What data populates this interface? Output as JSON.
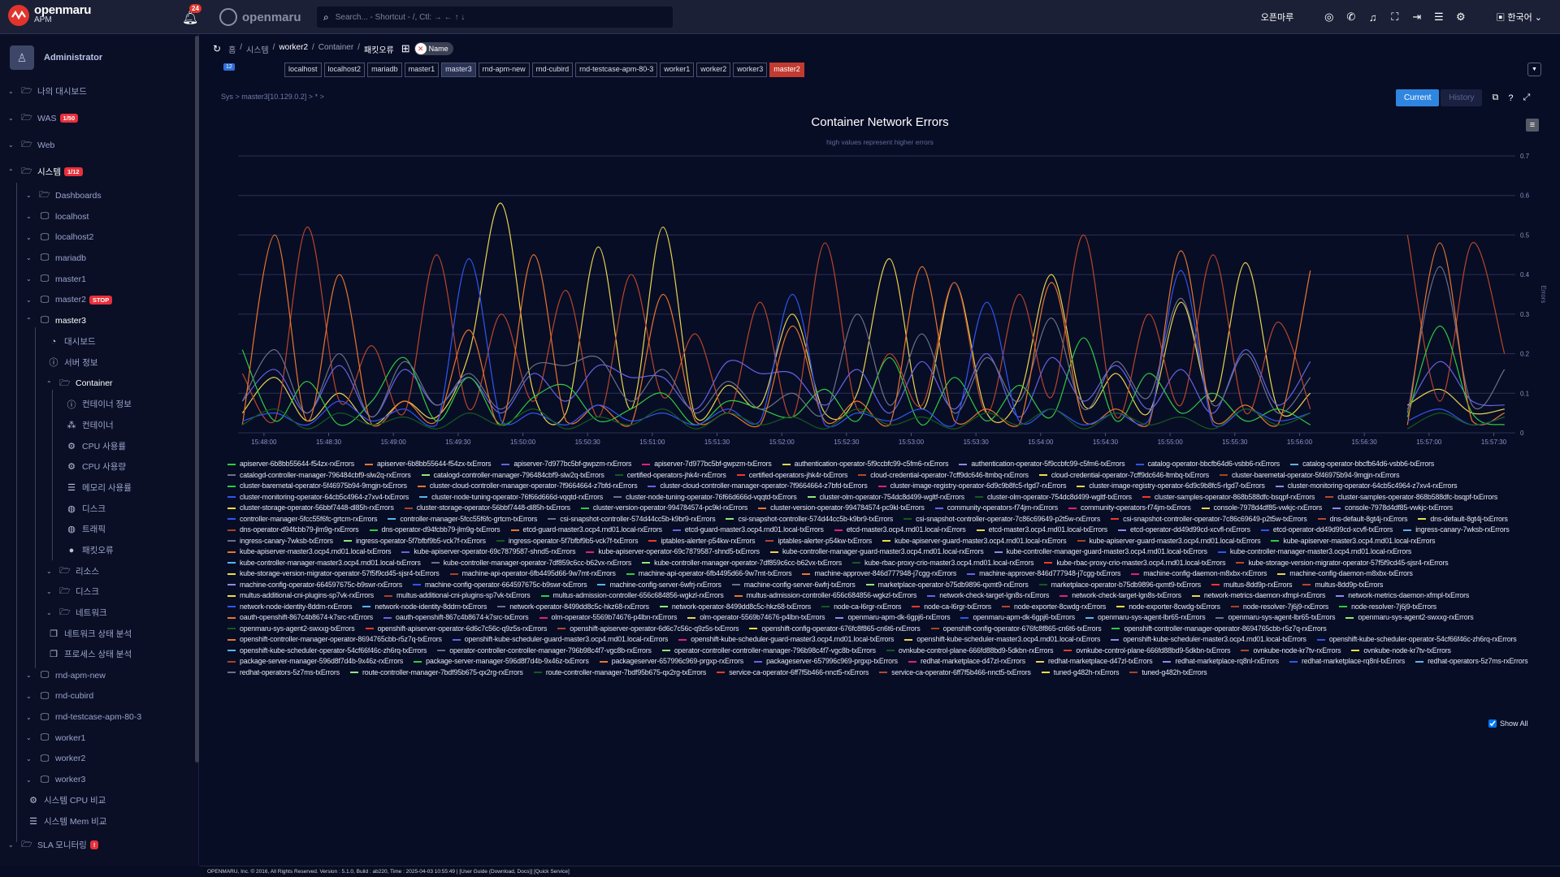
{
  "topbar": {
    "brand": "openmaru",
    "brand_sub": "APM",
    "notif_count": "24",
    "brand2": "openmaru",
    "search_placeholder": "Search... - Shortcut - /, Ctl: → ← ↑ ↓",
    "company": "오픈마루",
    "language": "한국어"
  },
  "sidebar": {
    "user": "Administrator",
    "items": [
      {
        "level": 0,
        "chev": "v",
        "icon": "folder",
        "label": "나의 대시보드"
      },
      {
        "level": 0,
        "chev": "v",
        "icon": "folder",
        "label": "WAS",
        "badge": "1/50"
      },
      {
        "level": 0,
        "chev": "v",
        "icon": "folder",
        "label": "Web"
      },
      {
        "level": 0,
        "chev": "^",
        "icon": "folder",
        "label": "시스템",
        "badge": "1/12",
        "active": true
      },
      {
        "level": 1,
        "chev": "v",
        "icon": "folder",
        "label": "Dashboards"
      },
      {
        "level": 1,
        "chev": "v",
        "icon": "monitor",
        "label": "localhost"
      },
      {
        "level": 1,
        "chev": "v",
        "icon": "monitor",
        "label": "localhost2"
      },
      {
        "level": 1,
        "chev": "v",
        "icon": "monitor",
        "label": "mariadb"
      },
      {
        "level": 1,
        "chev": "v",
        "icon": "monitor",
        "label": "master1"
      },
      {
        "level": 1,
        "chev": "v",
        "icon": "monitor",
        "label": "master2",
        "badge": "STOP"
      },
      {
        "level": 1,
        "chev": "^",
        "icon": "monitor",
        "label": "master3",
        "active": true
      },
      {
        "level": 2,
        "icon": "gauge",
        "label": "대시보드"
      },
      {
        "level": 2,
        "icon": "info",
        "label": "서버 정보"
      },
      {
        "level": 2,
        "chev": "^",
        "icon": "folder",
        "label": "Container",
        "active": true
      },
      {
        "level": 3,
        "icon": "info",
        "label": "컨테이너 정보"
      },
      {
        "level": 3,
        "icon": "cubes",
        "label": "컨테이너"
      },
      {
        "level": 3,
        "icon": "cogs",
        "label": "CPU 사용률"
      },
      {
        "level": 3,
        "icon": "cogs",
        "label": "CPU 사용량"
      },
      {
        "level": 3,
        "icon": "server",
        "label": "메모리 사용률"
      },
      {
        "level": 3,
        "icon": "globe",
        "label": "디스크"
      },
      {
        "level": 3,
        "icon": "globe",
        "label": "트래픽"
      },
      {
        "level": 3,
        "icon": "fire",
        "label": "패킷오류"
      },
      {
        "level": 2,
        "chev": "v",
        "icon": "folder",
        "label": "리소스"
      },
      {
        "level": 2,
        "chev": "v",
        "icon": "folder",
        "label": "디스크"
      },
      {
        "level": 2,
        "chev": "v",
        "icon": "folder",
        "label": "네트워크"
      },
      {
        "level": 2,
        "icon": "copy",
        "label": "네트워크 상태 분석"
      },
      {
        "level": 2,
        "icon": "copy",
        "label": "프로세스 상태 분석"
      },
      {
        "level": 1,
        "chev": "v",
        "icon": "monitor",
        "label": "rnd-apm-new"
      },
      {
        "level": 1,
        "chev": "v",
        "icon": "monitor",
        "label": "rnd-cubird"
      },
      {
        "level": 1,
        "chev": "v",
        "icon": "monitor",
        "label": "rnd-testcase-apm-80-3"
      },
      {
        "level": 1,
        "chev": "v",
        "icon": "monitor",
        "label": "worker1"
      },
      {
        "level": 1,
        "chev": "v",
        "icon": "monitor",
        "label": "worker2"
      },
      {
        "level": 1,
        "chev": "v",
        "icon": "monitor",
        "label": "worker3"
      },
      {
        "level": 1,
        "icon": "cogs",
        "label": "시스템 CPU 비교"
      },
      {
        "level": 1,
        "icon": "server",
        "label": "시스템 Mem 비교"
      },
      {
        "level": 0,
        "chev": "v",
        "icon": "folder",
        "label": "SLA 모니터링",
        "badge": "!"
      }
    ]
  },
  "breadcrumb": {
    "items": [
      "홈",
      "시스템",
      "worker2",
      "Container",
      "패킷오류"
    ],
    "toggle_label": "Name"
  },
  "host_count": "12",
  "hosts": [
    {
      "label": "localhost"
    },
    {
      "label": "localhost2"
    },
    {
      "label": "mariadb"
    },
    {
      "label": "master1"
    },
    {
      "label": "master3",
      "state": "selected"
    },
    {
      "label": "rnd-apm-new"
    },
    {
      "label": "rnd-cubird"
    },
    {
      "label": "rnd-testcase-apm-80-3"
    },
    {
      "label": "worker1"
    },
    {
      "label": "worker2"
    },
    {
      "label": "worker3"
    },
    {
      "label": "master2",
      "state": "stopped"
    }
  ],
  "path": "Sys > master3[10.129.0.2] > * >",
  "buttons": {
    "current": "Current",
    "history": "History"
  },
  "show_all": "Show All",
  "footer": "OPENMARU, Inc. © 2016, All Rights Reserved. Version : 5.1.0, Build : ab220, Time : 2025-04-03 10:55:49  |  [User Guide (Download, Docs)] [Quick Service]",
  "chart_data": {
    "type": "line",
    "title": "Container Network Errors",
    "subtitle": "high values represent higher errors",
    "ylabel": "Errors",
    "xlabel": "",
    "ylim": [
      0,
      0.7
    ],
    "yticks": [
      "0",
      "0.1",
      "0.2",
      "0.3",
      "0.4",
      "0.5",
      "0.6",
      "0.7"
    ],
    "xrange": [
      "15:47:48",
      "15:57:40"
    ],
    "xticks": [
      "15:48:00",
      "15:48:30",
      "15:49:00",
      "15:49:30",
      "15:50:00",
      "15:50:30",
      "15:51:00",
      "15:51:30",
      "15:52:00",
      "15:52:30",
      "15:53:00",
      "15:53:30",
      "15:54:00",
      "15:54:30",
      "15:55:00",
      "15:55:30",
      "15:56:00",
      "15:56:30",
      "15:57:00",
      "15:57:30"
    ],
    "x_start": "15:47:50",
    "x_step_seconds": 15,
    "palette": [
      "#2ecc40",
      "#e8762c",
      "#6464e6",
      "#e0207a",
      "#e8d44d",
      "#8c8ce8",
      "#2f56f0",
      "#5ab4ee",
      "#6c7088",
      "#8ee87a",
      "#145a1e",
      "#ee3a2a",
      "#b8462a",
      "#e8e040",
      "#a84424"
    ],
    "series": [
      {
        "name": "cloud-credential-operator-7cff9dc646-ltmbq-txErrors",
        "color": "#e8d44d",
        "values": [
          0.05,
          0.14,
          0.03,
          0.1,
          0.02,
          0.08,
          0.04,
          0.2,
          0.58,
          0.1,
          0.05,
          0.47,
          0.06,
          0.52,
          0.04,
          0.12,
          0.07,
          0.3,
          0.05,
          0.1,
          0.44,
          0.06,
          0.38,
          0.05,
          0.09,
          0.4,
          0.07,
          0.15,
          0.05,
          0.33,
          0.08,
          0.43,
          0.06,
          0.1,
          null,
          null,
          0.07,
          0.11,
          0.05,
          0.06
        ]
      },
      {
        "name": "cluster-baremetal-operator-5f46975b94-9mgjn-rxErrors",
        "color": "#b8462a",
        "values": [
          0.15,
          0.03,
          0.52,
          0.08,
          0.22,
          0.05,
          0.45,
          0.06,
          0.3,
          0.08,
          0.36,
          0.04,
          0.4,
          0.09,
          0.25,
          0.05,
          0.33,
          0.04,
          0.48,
          0.06,
          0.2,
          0.07,
          0.38,
          0.05,
          0.35,
          0.09,
          0.5,
          0.04,
          0.3,
          0.07,
          0.45,
          0.05,
          0.28,
          0.06,
          null,
          null,
          0.5,
          0.08,
          0.48,
          0.2
        ]
      },
      {
        "name": "authentication-operator-5f9ccbfc99-c5fm6-txErrors",
        "color": "#6464e6",
        "values": [
          0.08,
          0.16,
          0.05,
          0.17,
          0.04,
          0.16,
          0.07,
          0.14,
          0.05,
          0.15,
          0.08,
          0.17,
          0.14,
          0.14,
          0.06,
          0.18,
          0.15,
          0.15,
          0.07,
          0.16,
          0.05,
          0.18,
          0.06,
          0.2,
          0.04,
          0.19,
          0.08,
          0.17,
          0.06,
          0.16,
          0.05,
          0.21,
          0.07,
          0.18,
          null,
          null,
          0.06,
          0.18,
          0.08,
          0.07
        ]
      },
      {
        "name": "apiserver-6b8bb55644-f54zx-rxErrors",
        "color": "#2ecc40",
        "values": [
          0.21,
          0.03,
          0.13,
          0.02,
          0.08,
          0.19,
          0.03,
          0.14,
          0.02,
          0.09,
          0.12,
          0.03,
          0.06,
          0.1,
          0.02,
          0.08,
          0.06,
          0.04,
          0.11,
          0.03,
          0.19,
          0.02,
          0.14,
          0.03,
          0.12,
          0.04,
          0.24,
          0.03,
          0.15,
          0.05,
          0.1,
          0.03,
          0.06,
          0.02,
          null,
          null,
          0.04,
          0.27,
          0.05,
          0.02
        ]
      },
      {
        "name": "catalogd-controller-manager-796484cbf9-slw2q-rxErrors",
        "color": "#6c7088",
        "values": [
          0.08,
          0.21,
          0.05,
          0.2,
          0.04,
          0.18,
          0.07,
          0.15,
          0.06,
          0.17,
          0.17,
          0.19,
          0.08,
          0.16,
          0.05,
          0.13,
          0.06,
          0.1,
          0.05,
          0.3,
          0.07,
          0.25,
          0.05,
          0.19,
          0.08,
          0.29,
          0.06,
          0.18,
          0.09,
          0.34,
          0.07,
          0.2,
          0.05,
          0.14,
          null,
          null,
          0.05,
          0.42,
          0.07,
          0.16
        ]
      },
      {
        "name": "apiserver-6b8bb55644-f54zx-txErrors",
        "color": "#e8762c",
        "values": [
          0.02,
          0.5,
          0.03,
          0.4,
          0.02,
          0.08,
          0.03,
          0.26,
          0.02,
          0.45,
          0.03,
          0.07,
          0.02,
          0.35,
          0.03,
          0.05,
          0.02,
          0.27,
          0.03,
          0.08,
          0.02,
          0.42,
          0.03,
          0.06,
          0.02,
          0.38,
          0.03,
          0.06,
          0.02,
          0.46,
          0.03,
          0.07,
          0.02,
          0.41,
          null,
          null,
          0.02,
          0.48,
          0.03,
          0.05
        ]
      },
      {
        "name": "catalog-operator-bbcfb64d6-vsbb6-rxErrors",
        "color": "#2f56f0",
        "values": [
          0.03,
          0.05,
          0.02,
          0.08,
          0.03,
          0.06,
          0.02,
          0.44,
          0.03,
          0.05,
          0.02,
          0.07,
          0.03,
          0.05,
          0.02,
          0.06,
          0.03,
          0.35,
          0.02,
          0.05,
          0.03,
          0.06,
          0.02,
          0.33,
          0.03,
          0.06,
          0.02,
          0.05,
          0.03,
          0.41,
          0.02,
          0.06,
          0.03,
          0.05,
          null,
          null,
          0.03,
          0.06,
          0.02,
          0.04
        ]
      },
      {
        "name": "certified-operators-jhk4r-rxErrors",
        "color": "#145a1e",
        "values": [
          0.02,
          0.06,
          0.01,
          0.05,
          0.02,
          0.04,
          0.01,
          0.05,
          0.02,
          0.06,
          0.01,
          0.04,
          0.02,
          0.06,
          0.01,
          0.05,
          0.02,
          0.04,
          0.01,
          0.06,
          0.02,
          0.04,
          0.01,
          0.05,
          0.02,
          0.06,
          0.01,
          0.05,
          0.02,
          0.04,
          0.01,
          0.06,
          0.02,
          0.05,
          null,
          null,
          0.01,
          0.05,
          0.02,
          0.04
        ]
      }
    ],
    "legend_suffixes": [
      "-rxErrors",
      "-txErrors"
    ],
    "legend_pods": [
      "apiserver-6b8bb55644-f54zx",
      "apiserver-7d977bc5bf-gwpzm",
      "authentication-operator-5f9ccbfc99-c5fm6",
      "catalog-operator-bbcfb64d6-vsbb6",
      "catalogd-controller-manager-796484cbf9-slw2q",
      "certified-operators-jhk4r",
      "cloud-credential-operator-7cff9dc646-ltmbq",
      "cluster-baremetal-operator-5f46975b94-9mgjn",
      "cluster-cloud-controller-manager-operator-7f9664664-z7bfd",
      "cluster-image-registry-operator-6d9c9b8fc5-rlgd7",
      "cluster-monitoring-operator-64cb5c4964-z7xv4",
      "cluster-node-tuning-operator-76f66d666d-vqqtd",
      "cluster-olm-operator-754dc8d499-wgltf",
      "cluster-samples-operator-868b588dfc-bsqpf",
      "cluster-storage-operator-56bbf7448-dl85h",
      "cluster-version-operator-994784574-pc9kl",
      "community-operators-f74jm",
      "console-7978d4df85-vwkjc",
      "controller-manager-5fcc55f6fc-grtcm",
      "csi-snapshot-controller-574d44cc5b-k9br9",
      "csi-snapshot-controller-operator-7c86c69649-p2t5w",
      "dns-default-8gt4j",
      "dns-operator-d94fcbb79-jlm9g",
      "etcd-guard-master3.ocp4.rnd01.local",
      "etcd-master3.ocp4.rnd01.local",
      "etcd-operator-dd49d99cd-xcvfl",
      "ingress-canary-7wksb",
      "ingress-operator-5f7bfbf9b5-vck7f",
      "iptables-alerter-p54kw",
      "kube-apiserver-guard-master3.ocp4.rnd01.local",
      "kube-apiserver-master3.ocp4.rnd01.local",
      "kube-apiserver-operator-69c7879587-shnd5",
      "kube-controller-manager-guard-master3.ocp4.rnd01.local",
      "kube-controller-manager-master3.ocp4.rnd01.local",
      "kube-controller-manager-operator-7df859c6cc-b62vx",
      "kube-rbac-proxy-crio-master3.ocp4.rnd01.local",
      "kube-storage-version-migrator-operator-57f5f9cd45-sjsr4",
      "machine-api-operator-6fb4495d66-9w7mt",
      "machine-approver-846d777948-j7cgg",
      "machine-config-daemon-m8xbx",
      "machine-config-operator-664597675c-b9swr",
      "machine-config-server-6wfrj",
      "marketplace-operator-b75db9896-qxmt9",
      "multus-8dd9p",
      "multus-additional-cni-plugins-sp7vk",
      "multus-admission-controller-656c684856-wgkzl",
      "network-check-target-lgn8s",
      "network-metrics-daemon-xfmpl",
      "network-node-identity-8ddrn",
      "network-operator-8499dd8c5c-hkz68",
      "node-ca-l6rgr",
      "node-exporter-8cwdg",
      "node-resolver-7j6j9",
      "oauth-openshift-867c4b8674-k7src",
      "olm-operator-5569b74676-p4lbn",
      "openmaru-apm-dk-6gpj6",
      "openmaru-sys-agent-lbr65",
      "openmaru-sys-agent2-swxxg",
      "openshift-apiserver-operator-6d6c7c56c-q9z5s",
      "openshift-config-operator-676fc8f865-cn6t6",
      "openshift-controller-manager-operator-8694765cbb-r5z7q",
      "openshift-kube-scheduler-guard-master3.ocp4.rnd01.local",
      "openshift-kube-scheduler-master3.ocp4.rnd01.local",
      "openshift-kube-scheduler-operator-54cf66f46c-zh6rq",
      "operator-controller-controller-manager-796b98c4f7-vgc8b",
      "ovnkube-control-plane-666fd88bd9-5dkbn",
      "ovnkube-node-kr7tv",
      "package-server-manager-596d8f7d4b-9x46z",
      "packageserver-657996c969-prgxp",
      "redhat-marketplace-d47zl",
      "redhat-marketplace-rq8nl",
      "redhat-operators-5z7ms",
      "route-controller-manager-7bdf95b675-qx2rg",
      "service-ca-operator-6ff7f5b466-nnct5",
      "tuned-g482h"
    ]
  }
}
